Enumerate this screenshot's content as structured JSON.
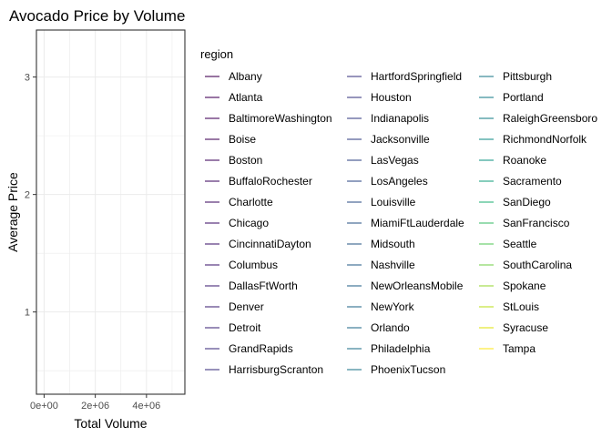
{
  "chart_data": {
    "type": "line",
    "title": "Avocado Price by Volume",
    "xlabel": "Total Volume",
    "ylabel": "Average Price",
    "x_ticks": [
      {
        "value": 0,
        "label": "0e+00"
      },
      {
        "value": 2000000,
        "label": "2e+06"
      },
      {
        "value": 4000000,
        "label": "4e+06"
      }
    ],
    "y_ticks": [
      {
        "value": 1,
        "label": "1"
      },
      {
        "value": 2,
        "label": "2"
      },
      {
        "value": 3,
        "label": "3"
      }
    ],
    "xlim": [
      -300000,
      5500000
    ],
    "ylim": [
      0.3,
      3.4
    ],
    "grid": true,
    "legend_title": "region",
    "legend_placement": "right",
    "series": [
      {
        "name": "Albany",
        "color": "#440154"
      },
      {
        "name": "Atlanta",
        "color": "#450559"
      },
      {
        "name": "BaltimoreWashington",
        "color": "#46085c"
      },
      {
        "name": "Boise",
        "color": "#460b5e"
      },
      {
        "name": "Boston",
        "color": "#471063"
      },
      {
        "name": "BuffaloRochester",
        "color": "#481467"
      },
      {
        "name": "Charlotte",
        "color": "#48186a"
      },
      {
        "name": "Chicago",
        "color": "#481c6e"
      },
      {
        "name": "CincinnatiDayton",
        "color": "#482071"
      },
      {
        "name": "Columbus",
        "color": "#482475"
      },
      {
        "name": "DallasFtWorth",
        "color": "#472878"
      },
      {
        "name": "Denver",
        "color": "#472c7a"
      },
      {
        "name": "Detroit",
        "color": "#46307e"
      },
      {
        "name": "GrandRapids",
        "color": "#453581"
      },
      {
        "name": "HarrisburgScranton",
        "color": "#443983"
      },
      {
        "name": "HartfordSpringfield",
        "color": "#433e85"
      },
      {
        "name": "Houston",
        "color": "#424186"
      },
      {
        "name": "Indianapolis",
        "color": "#404588"
      },
      {
        "name": "Jacksonville",
        "color": "#3e4989"
      },
      {
        "name": "LasVegas",
        "color": "#3c4f8a"
      },
      {
        "name": "LosAngeles",
        "color": "#3a538b"
      },
      {
        "name": "Louisville",
        "color": "#38588c"
      },
      {
        "name": "MiamiFtLauderdale",
        "color": "#365c8d"
      },
      {
        "name": "Midsouth",
        "color": "#34608d"
      },
      {
        "name": "Nashville",
        "color": "#32658e"
      },
      {
        "name": "NewOrleansMobile",
        "color": "#30698e"
      },
      {
        "name": "NewYork",
        "color": "#2e6d8e"
      },
      {
        "name": "Orlando",
        "color": "#2c718e"
      },
      {
        "name": "Philadelphia",
        "color": "#2a768e"
      },
      {
        "name": "PhoenixTucson",
        "color": "#287a8e"
      },
      {
        "name": "Pittsburgh",
        "color": "#267e8e"
      },
      {
        "name": "Portland",
        "color": "#24828e"
      },
      {
        "name": "RaleighGreensboro",
        "color": "#22868d"
      },
      {
        "name": "RichmondNorfolk",
        "color": "#20928c"
      },
      {
        "name": "Roanoke",
        "color": "#1f9a8a"
      },
      {
        "name": "Sacramento",
        "color": "#22a785"
      },
      {
        "name": "SanDiego",
        "color": "#2fb47c"
      },
      {
        "name": "SanFrancisco",
        "color": "#44bf70"
      },
      {
        "name": "Seattle",
        "color": "#5ec962"
      },
      {
        "name": "SouthCarolina",
        "color": "#7ad151"
      },
      {
        "name": "Spokane",
        "color": "#9bd93c"
      },
      {
        "name": "StLouis",
        "color": "#bddf26"
      },
      {
        "name": "Syracuse",
        "color": "#dfe318"
      },
      {
        "name": "Tampa",
        "color": "#fde725"
      }
    ]
  }
}
